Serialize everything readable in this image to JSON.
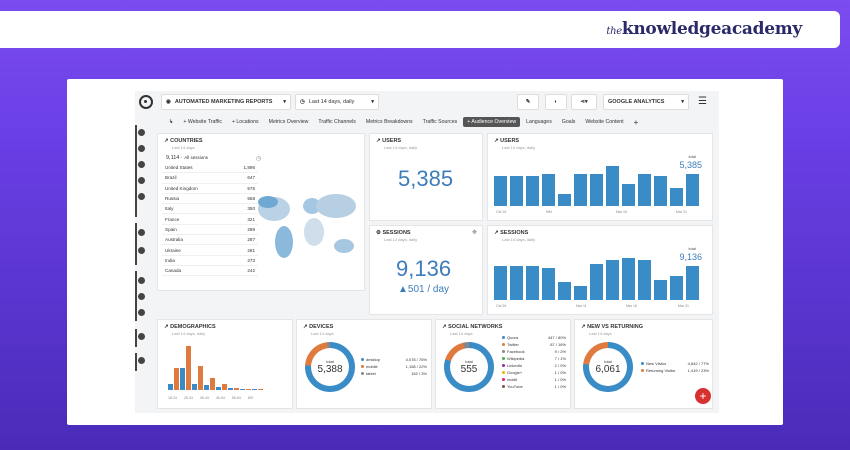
{
  "brand": {
    "prefix": "the",
    "name": "knowledgeacademy"
  },
  "header": {
    "title": "AUTOMATED MARKETING REPORTS",
    "date_range": "Last 14 days, daily",
    "source": "GOOGLE ANALYTICS"
  },
  "tabs": [
    "+ Website Traffic",
    "+ Locations",
    "Metrics Overview",
    "Traffic Channels",
    "Metrics Breakdowns",
    "Traffic Sources",
    "+ Audience Overview",
    "Languages",
    "Goals",
    "Website Content",
    "+"
  ],
  "countries": {
    "title": "COUNTRIES",
    "subtitle": "Last 14 days",
    "total": "9,114",
    "total_label": "All sessions",
    "rows": [
      {
        "name": "United States",
        "value": "1,896"
      },
      {
        "name": "Brazil",
        "value": "647"
      },
      {
        "name": "United Kingdom",
        "value": "575"
      },
      {
        "name": "Russia",
        "value": "558"
      },
      {
        "name": "Italy",
        "value": "350"
      },
      {
        "name": "France",
        "value": "321"
      },
      {
        "name": "Spain",
        "value": "289"
      },
      {
        "name": "Australia",
        "value": "287"
      },
      {
        "name": "Ukraine",
        "value": "281"
      },
      {
        "name": "India",
        "value": "273"
      },
      {
        "name": "Canada",
        "value": "242"
      }
    ]
  },
  "users_kpi": {
    "title": "USERS",
    "subtitle": "Last 14 days, daily",
    "value": "5,385"
  },
  "users_chart": {
    "title": "USERS",
    "subtitle": "Last 14 days, daily",
    "total_label": "total",
    "total": "5,385",
    "x_labels": [
      "Oct 16",
      "MM",
      "Mar 16",
      "Mar 21"
    ]
  },
  "sessions_kpi": {
    "title": "SESSIONS",
    "subtitle": "Last 14 days, daily",
    "value": "9,136",
    "per_day": "▲501 / day"
  },
  "sessions_chart": {
    "title": "SESSIONS",
    "subtitle": "Last 14 days, daily",
    "total_label": "total",
    "total": "9,136",
    "x_labels": [
      "Oct 26",
      "Mar 11",
      "Mar 16",
      "Mar 21"
    ]
  },
  "demographics": {
    "title": "DEMOGRAPHICS",
    "subtitle": "Last 14 days, daily",
    "x_labels": [
      "18-24",
      "25-34",
      "35-44",
      "45-54",
      "55-64",
      "65+"
    ]
  },
  "devices": {
    "title": "DEVICES",
    "subtitle": "Last 14 days",
    "total_label": "total",
    "total": "5,388",
    "rows": [
      {
        "name": "desktop",
        "value": "4,078 / 76%"
      },
      {
        "name": "mobile",
        "value": "1,158 / 22%"
      },
      {
        "name": "tablet",
        "value": "152 / 3%"
      }
    ]
  },
  "social": {
    "title": "SOCIAL NETWORKS",
    "subtitle": "Last 14 days",
    "total_label": "total",
    "total": "555",
    "rows": [
      {
        "name": "Quora",
        "value": "447 / 80%"
      },
      {
        "name": "Twitter",
        "value": "87 / 16%"
      },
      {
        "name": "Facebook",
        "value": "9 / 2%"
      },
      {
        "name": "Wikipedia",
        "value": "7 / 1%"
      },
      {
        "name": "LinkedIn",
        "value": "2 / 0%"
      },
      {
        "name": "Google+",
        "value": "1 / 0%"
      },
      {
        "name": "reddit",
        "value": "1 / 0%"
      },
      {
        "name": "YouTube",
        "value": "1 / 0%"
      }
    ]
  },
  "new_returning": {
    "title": "NEW VS RETURNING",
    "subtitle": "Last 14 days",
    "total_label": "total",
    "total": "6,061",
    "rows": [
      {
        "name": "New Visitor",
        "value": "4,642 / 77%"
      },
      {
        "name": "Returning Visitor",
        "value": "1,419 / 23%"
      }
    ]
  },
  "colors": {
    "bar": "#3a8cc6",
    "orange": "#e07b3f",
    "brand": "#2a2a6a",
    "fab": "#d6302f"
  }
}
